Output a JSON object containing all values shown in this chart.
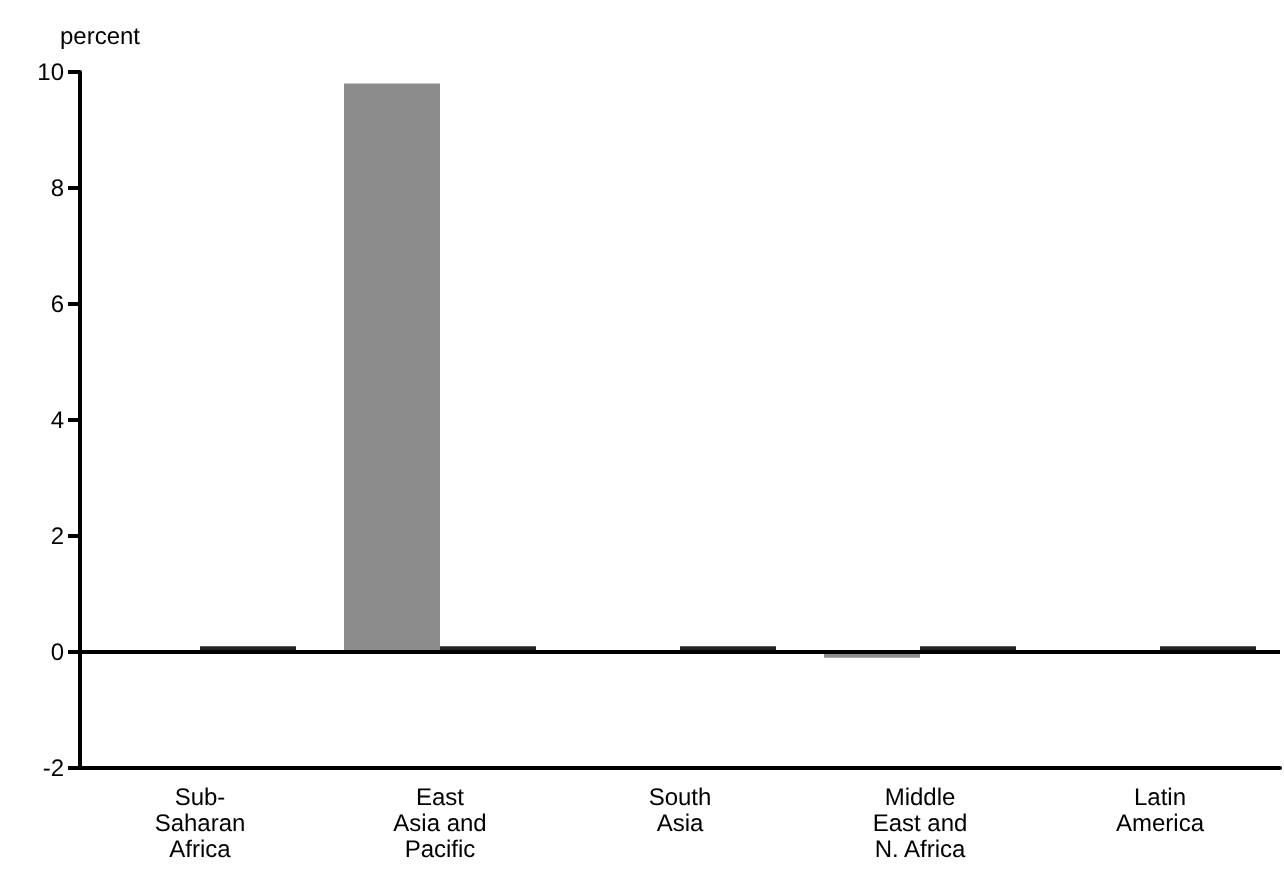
{
  "chart_data": {
    "type": "bar",
    "ylabel": "percent",
    "categories": [
      "Sub-\nSaharan\nAfrica",
      "East\nAsia and\nPacific",
      "South\nAsia",
      "Middle\nEast and\nN. Africa",
      "Latin\nAmerica"
    ],
    "series": [
      {
        "color": "#8c8c8c",
        "values": [
          null,
          9.8,
          null,
          -0.1,
          null
        ]
      },
      {
        "color": "#222222",
        "values": [
          0.1,
          0.1,
          0.1,
          0.1,
          0.1
        ]
      }
    ],
    "ylim": [
      -2,
      10
    ],
    "yticks": [
      -2,
      0,
      2,
      4,
      6,
      8,
      10
    ],
    "ref_lines": [
      {
        "axis": "y",
        "value": 0,
        "color": "#000000"
      }
    ]
  }
}
